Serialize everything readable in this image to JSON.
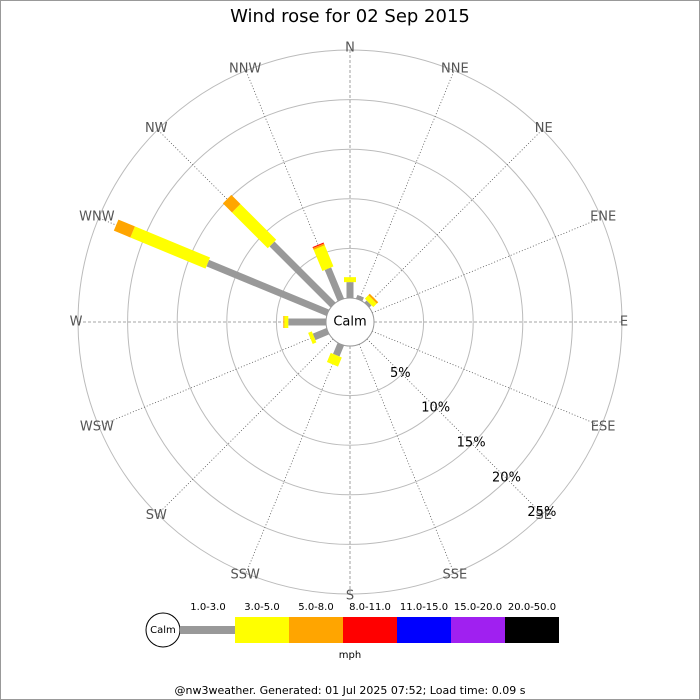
{
  "chart_data": {
    "type": "windrose",
    "title": "Wind rose for 02 Sep 2015",
    "directions": [
      "N",
      "NNE",
      "NE",
      "ENE",
      "E",
      "ESE",
      "SE",
      "SSE",
      "S",
      "SSW",
      "SW",
      "WSW",
      "W",
      "WNW",
      "NW",
      "NNW"
    ],
    "center_label": "Calm",
    "legend_calm": "Calm",
    "units": "mph",
    "footer": "@nw3weather. Generated: 01 Jul 2025 07:52; Load time: 0.09 s",
    "rlim": [
      0,
      25
    ],
    "rticks": [
      {
        "value": 5,
        "label": "5%"
      },
      {
        "value": 10,
        "label": "10%"
      },
      {
        "value": 15,
        "label": "15%"
      },
      {
        "value": 20,
        "label": "20%"
      },
      {
        "value": 25,
        "label": "25%"
      }
    ],
    "series": [
      {
        "name": "1.0-3.0",
        "color": "#999999",
        "values": [
          1.6,
          0.4,
          0.3,
          0,
          0,
          0,
          0,
          0,
          0,
          1.2,
          0,
          1.5,
          3.8,
          13.1,
          8.7,
          3.4
        ]
      },
      {
        "name": "3.0-5.0",
        "color": "#ffff00",
        "values": [
          0.5,
          0,
          0.5,
          0,
          0,
          0,
          0,
          0,
          0,
          1.0,
          0,
          0.4,
          0.4,
          8.2,
          5.1,
          2.3
        ]
      },
      {
        "name": "5.0-8.0",
        "color": "#ffa500",
        "values": [
          0,
          0,
          0.2,
          0,
          0,
          0,
          0,
          0,
          0,
          0,
          0,
          0,
          0.1,
          1.8,
          1.3,
          0.2
        ]
      },
      {
        "name": "8.0-11.0",
        "color": "#ff0000",
        "values": [
          0,
          0,
          0,
          0,
          0,
          0,
          0,
          0,
          0,
          0,
          0,
          0,
          0,
          0,
          0,
          0.1
        ]
      },
      {
        "name": "11.0-15.0",
        "color": "#0000ff",
        "values": [
          0,
          0,
          0,
          0,
          0,
          0,
          0,
          0,
          0,
          0,
          0,
          0,
          0,
          0,
          0,
          0
        ]
      },
      {
        "name": "15.0-20.0",
        "color": "#a020f0",
        "values": [
          0,
          0,
          0,
          0,
          0,
          0,
          0,
          0,
          0,
          0,
          0,
          0,
          0,
          0,
          0,
          0
        ]
      },
      {
        "name": "20.0-50.0",
        "color": "#000000",
        "values": [
          0,
          0,
          0,
          0,
          0,
          0,
          0,
          0,
          0,
          0,
          0,
          0,
          0,
          0,
          0,
          0
        ]
      }
    ]
  }
}
